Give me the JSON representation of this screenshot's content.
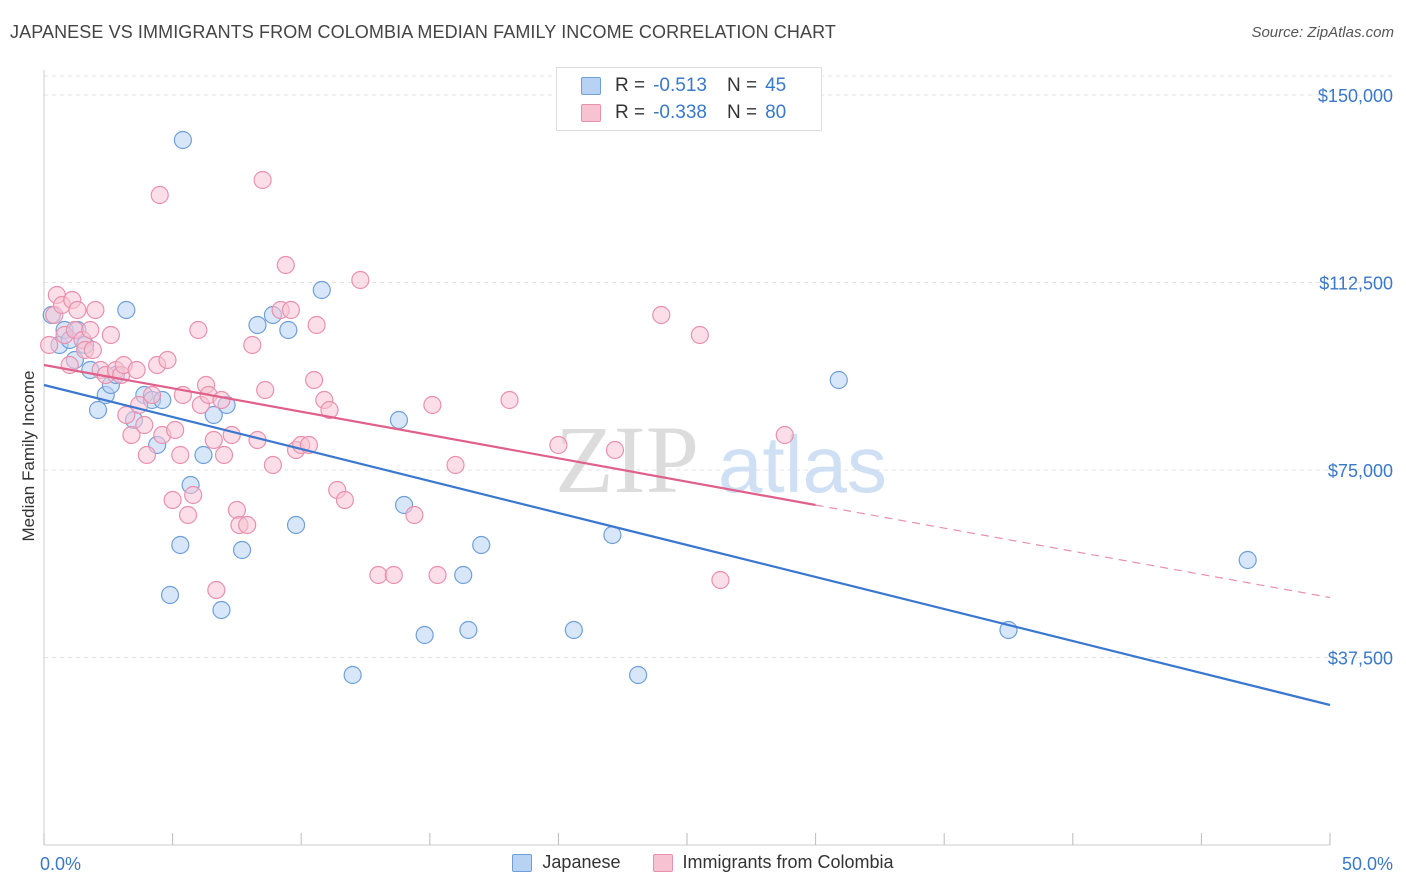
{
  "title": "JAPANESE VS IMMIGRANTS FROM COLOMBIA MEDIAN FAMILY INCOME CORRELATION CHART",
  "source": "Source: ZipAtlas.com",
  "watermark": {
    "zip": "ZIP",
    "atlas": "atlas"
  },
  "legend": {
    "rows": [
      {
        "r_label": "R =",
        "r_value": "-0.513",
        "n_label": "N =",
        "n_value": "45"
      },
      {
        "r_label": "R =",
        "r_value": "-0.338",
        "n_label": "N =",
        "n_value": "80"
      }
    ]
  },
  "colors": {
    "japanese_fill": "#b8d2f4",
    "japanese_stroke": "#6f9fd8",
    "japanese_line": "#3a78cf",
    "colombia_fill": "#f7c3d3",
    "colombia_stroke": "#e890ad",
    "colombia_line": "#e0608a",
    "axis_text": "#3a78c9",
    "grid": "#e3e3e3"
  },
  "chart_data": {
    "type": "scatter",
    "xlabel": "",
    "ylabel": "Median Family Income",
    "xlim": [
      0,
      50
    ],
    "ylim": [
      0,
      155000
    ],
    "x_tick_labels": [
      "0.0%",
      "50.0%"
    ],
    "y_ticks": [
      37500,
      75000,
      112500,
      150000
    ],
    "y_tick_labels": [
      "$37,500",
      "$75,000",
      "$112,500",
      "$150,000"
    ],
    "grid": true,
    "legend_position": "top-center",
    "series": [
      {
        "name": "Japanese",
        "trend": {
          "x0": 0,
          "y0": 92000,
          "x1": 50,
          "y1": 28000,
          "dashed_to": null
        },
        "points": [
          [
            0.3,
            106000
          ],
          [
            0.6,
            100000
          ],
          [
            0.8,
            103000
          ],
          [
            1.0,
            101000
          ],
          [
            1.2,
            97000
          ],
          [
            1.3,
            103000
          ],
          [
            1.6,
            100000
          ],
          [
            1.8,
            95000
          ],
          [
            2.1,
            87000
          ],
          [
            2.4,
            90000
          ],
          [
            2.6,
            92000
          ],
          [
            2.8,
            94000
          ],
          [
            3.2,
            107000
          ],
          [
            3.5,
            85000
          ],
          [
            3.9,
            90000
          ],
          [
            4.2,
            89000
          ],
          [
            4.4,
            80000
          ],
          [
            4.6,
            89000
          ],
          [
            4.9,
            50000
          ],
          [
            5.3,
            60000
          ],
          [
            5.4,
            141000
          ],
          [
            5.7,
            72000
          ],
          [
            6.2,
            78000
          ],
          [
            6.6,
            86000
          ],
          [
            6.9,
            47000
          ],
          [
            7.1,
            88000
          ],
          [
            7.7,
            59000
          ],
          [
            8.3,
            104000
          ],
          [
            8.9,
            106000
          ],
          [
            9.5,
            103000
          ],
          [
            9.8,
            64000
          ],
          [
            10.8,
            111000
          ],
          [
            12.0,
            34000
          ],
          [
            13.8,
            85000
          ],
          [
            14.0,
            68000
          ],
          [
            14.8,
            42000
          ],
          [
            16.3,
            54000
          ],
          [
            16.5,
            43000
          ],
          [
            17.0,
            60000
          ],
          [
            20.6,
            43000
          ],
          [
            22.1,
            62000
          ],
          [
            23.1,
            34000
          ],
          [
            30.9,
            93000
          ],
          [
            37.5,
            43000
          ],
          [
            46.8,
            57000
          ]
        ]
      },
      {
        "name": "Immigrants from Colombia",
        "trend": {
          "x0": 0,
          "y0": 96000,
          "x1": 30,
          "y1": 68000,
          "dashed_to": 50,
          "dashed_y": 49500
        },
        "points": [
          [
            0.2,
            100000
          ],
          [
            0.4,
            106000
          ],
          [
            0.5,
            110000
          ],
          [
            0.7,
            108000
          ],
          [
            0.8,
            102000
          ],
          [
            1.0,
            96000
          ],
          [
            1.1,
            109000
          ],
          [
            1.2,
            103000
          ],
          [
            1.3,
            107000
          ],
          [
            1.5,
            101000
          ],
          [
            1.6,
            99000
          ],
          [
            1.8,
            103000
          ],
          [
            1.9,
            99000
          ],
          [
            2.0,
            107000
          ],
          [
            2.2,
            95000
          ],
          [
            2.4,
            94000
          ],
          [
            2.6,
            102000
          ],
          [
            2.8,
            95000
          ],
          [
            3.0,
            94000
          ],
          [
            3.1,
            96000
          ],
          [
            3.2,
            86000
          ],
          [
            3.4,
            82000
          ],
          [
            3.6,
            95000
          ],
          [
            3.7,
            88000
          ],
          [
            3.9,
            84000
          ],
          [
            4.0,
            78000
          ],
          [
            4.2,
            90000
          ],
          [
            4.4,
            96000
          ],
          [
            4.5,
            130000
          ],
          [
            4.6,
            82000
          ],
          [
            4.8,
            97000
          ],
          [
            5.0,
            69000
          ],
          [
            5.1,
            83000
          ],
          [
            5.3,
            78000
          ],
          [
            5.4,
            90000
          ],
          [
            5.6,
            66000
          ],
          [
            5.8,
            70000
          ],
          [
            6.0,
            103000
          ],
          [
            6.1,
            88000
          ],
          [
            6.3,
            92000
          ],
          [
            6.4,
            90000
          ],
          [
            6.6,
            81000
          ],
          [
            6.7,
            51000
          ],
          [
            6.9,
            89000
          ],
          [
            7.0,
            78000
          ],
          [
            7.3,
            82000
          ],
          [
            7.5,
            67000
          ],
          [
            7.6,
            64000
          ],
          [
            7.9,
            64000
          ],
          [
            8.1,
            100000
          ],
          [
            8.3,
            81000
          ],
          [
            8.5,
            133000
          ],
          [
            8.6,
            91000
          ],
          [
            8.9,
            76000
          ],
          [
            9.2,
            107000
          ],
          [
            9.4,
            116000
          ],
          [
            9.6,
            107000
          ],
          [
            9.8,
            79000
          ],
          [
            10.0,
            80000
          ],
          [
            10.3,
            80000
          ],
          [
            10.5,
            93000
          ],
          [
            10.6,
            104000
          ],
          [
            10.9,
            89000
          ],
          [
            11.1,
            87000
          ],
          [
            11.4,
            71000
          ],
          [
            11.7,
            69000
          ],
          [
            12.3,
            113000
          ],
          [
            13.0,
            54000
          ],
          [
            14.4,
            66000
          ],
          [
            15.1,
            88000
          ],
          [
            15.3,
            54000
          ],
          [
            16.0,
            76000
          ],
          [
            20.0,
            80000
          ],
          [
            22.2,
            79000
          ],
          [
            24.0,
            106000
          ],
          [
            25.5,
            102000
          ],
          [
            26.3,
            53000
          ],
          [
            28.8,
            82000
          ],
          [
            13.6,
            54000
          ],
          [
            18.1,
            89000
          ]
        ]
      }
    ]
  },
  "bottom_legend": [
    "Japanese",
    "Immigrants from Colombia"
  ]
}
